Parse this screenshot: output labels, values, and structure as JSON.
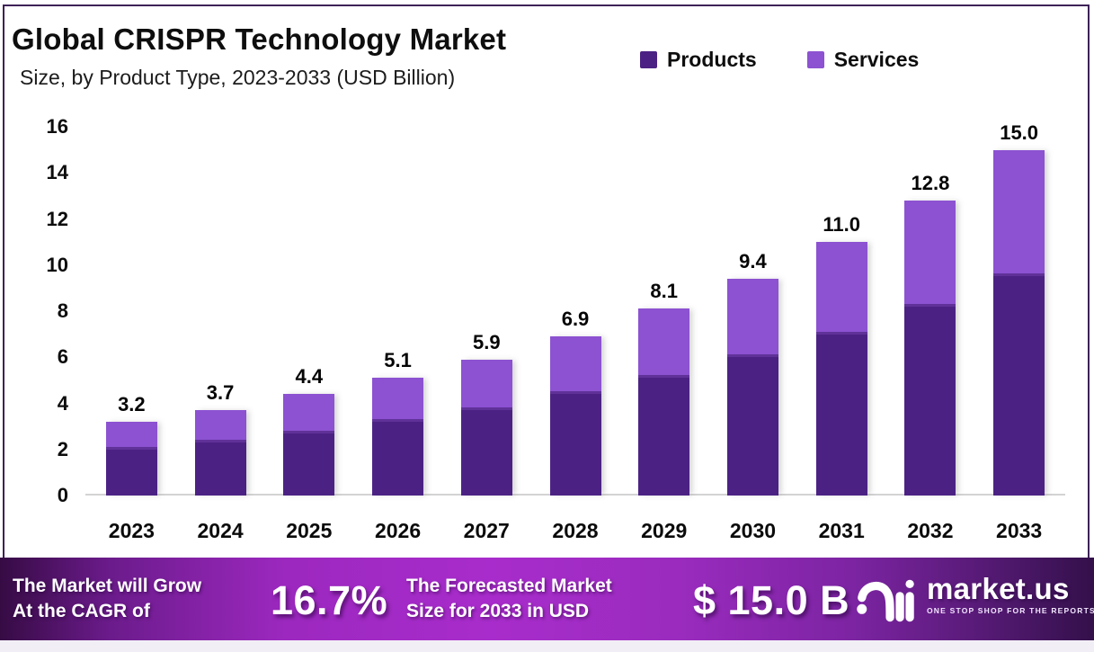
{
  "header": {
    "title": "Global CRISPR Technology Market",
    "subtitle": "Size, by Product Type, 2023-2033 (USD Billion)"
  },
  "legend": {
    "items": [
      {
        "label": "Products",
        "color": "#4B2284"
      },
      {
        "label": "Services",
        "color": "#8C52D1"
      }
    ]
  },
  "chart_data": {
    "type": "bar",
    "stacked": true,
    "title": "Global CRISPR Technology Market",
    "subtitle": "Size, by Product Type, 2023-2033 (USD Billion)",
    "units": "USD Billion",
    "categories": [
      "2023",
      "2024",
      "2025",
      "2026",
      "2027",
      "2028",
      "2029",
      "2030",
      "2031",
      "2032",
      "2033"
    ],
    "series": [
      {
        "name": "Products",
        "color": "#4B2284",
        "values": [
          2.0,
          2.3,
          2.7,
          3.2,
          3.7,
          4.4,
          5.1,
          6.0,
          7.0,
          8.2,
          9.5
        ]
      },
      {
        "name": "Services",
        "color": "#8C52D1",
        "values": [
          1.2,
          1.4,
          1.7,
          1.9,
          2.2,
          2.5,
          3.0,
          3.4,
          4.0,
          4.6,
          5.5
        ]
      }
    ],
    "totals": [
      3.2,
      3.7,
      4.4,
      5.1,
      5.9,
      6.9,
      8.1,
      9.4,
      11.0,
      12.8,
      15.0
    ],
    "total_labels": [
      "3.2",
      "3.7",
      "4.4",
      "5.1",
      "5.9",
      "6.9",
      "8.1",
      "9.4",
      "11.0",
      "12.8",
      "15.0"
    ],
    "y_ticks": [
      0,
      2,
      4,
      6,
      8,
      10,
      12,
      14,
      16
    ],
    "ylim": [
      0,
      16
    ],
    "xlabel": "",
    "ylabel": "",
    "grid": false,
    "legend_position": "top-right"
  },
  "banner": {
    "cagr_label_line1": "The Market will Grow",
    "cagr_label_line2": "At the CAGR of",
    "cagr_value": "16.7%",
    "forecast_label_line1": "The Forecasted Market",
    "forecast_label_line2": "Size for 2033 in USD",
    "forecast_value": "$ 15.0 B",
    "brand_name": "market.us",
    "brand_tagline": "ONE STOP SHOP FOR THE REPORTS"
  },
  "colors": {
    "products": "#4B2284",
    "services": "#8C52D1",
    "frame_border": "#3E2158",
    "axis_line": "#D3D3D3",
    "banner_gradient_left": "#360B44",
    "banner_gradient_mid": "#A82CCB",
    "banner_gradient_right": "#33104A",
    "text": "#0E0E0E",
    "banner_text": "#FFFFFF"
  }
}
